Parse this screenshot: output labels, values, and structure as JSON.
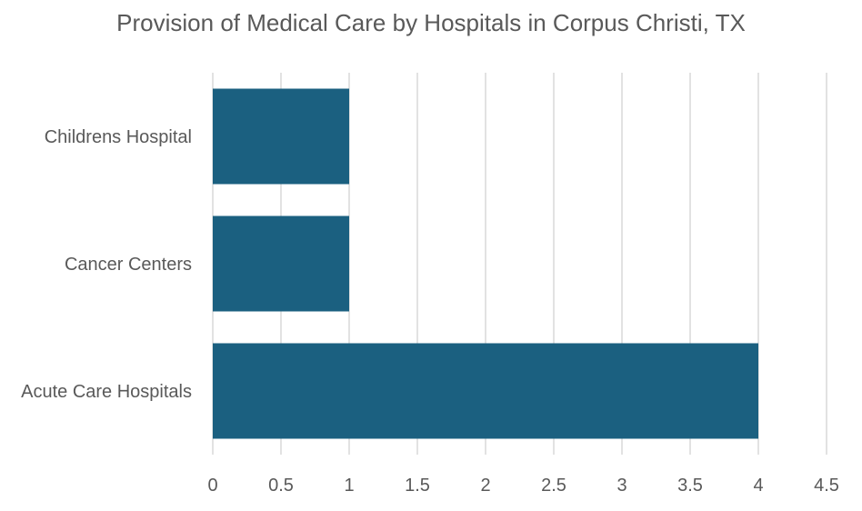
{
  "chart_data": {
    "type": "bar",
    "orientation": "horizontal",
    "title": "Provision of Medical Care by Hospitals in Corpus Christi, TX",
    "categories": [
      "Childrens Hospital",
      "Cancer Centers",
      "Acute Care Hospitals"
    ],
    "values": [
      1,
      1,
      4
    ],
    "xlim": [
      0,
      4.5
    ],
    "xticks": [
      "0",
      "0.5",
      "1",
      "1.5",
      "2",
      "2.5",
      "3",
      "3.5",
      "4",
      "4.5"
    ],
    "xlabel": "",
    "ylabel": "",
    "grid": "vertical",
    "legend": "none",
    "bar_color": "#1b6080",
    "grid_color": "#d9d9d9"
  }
}
